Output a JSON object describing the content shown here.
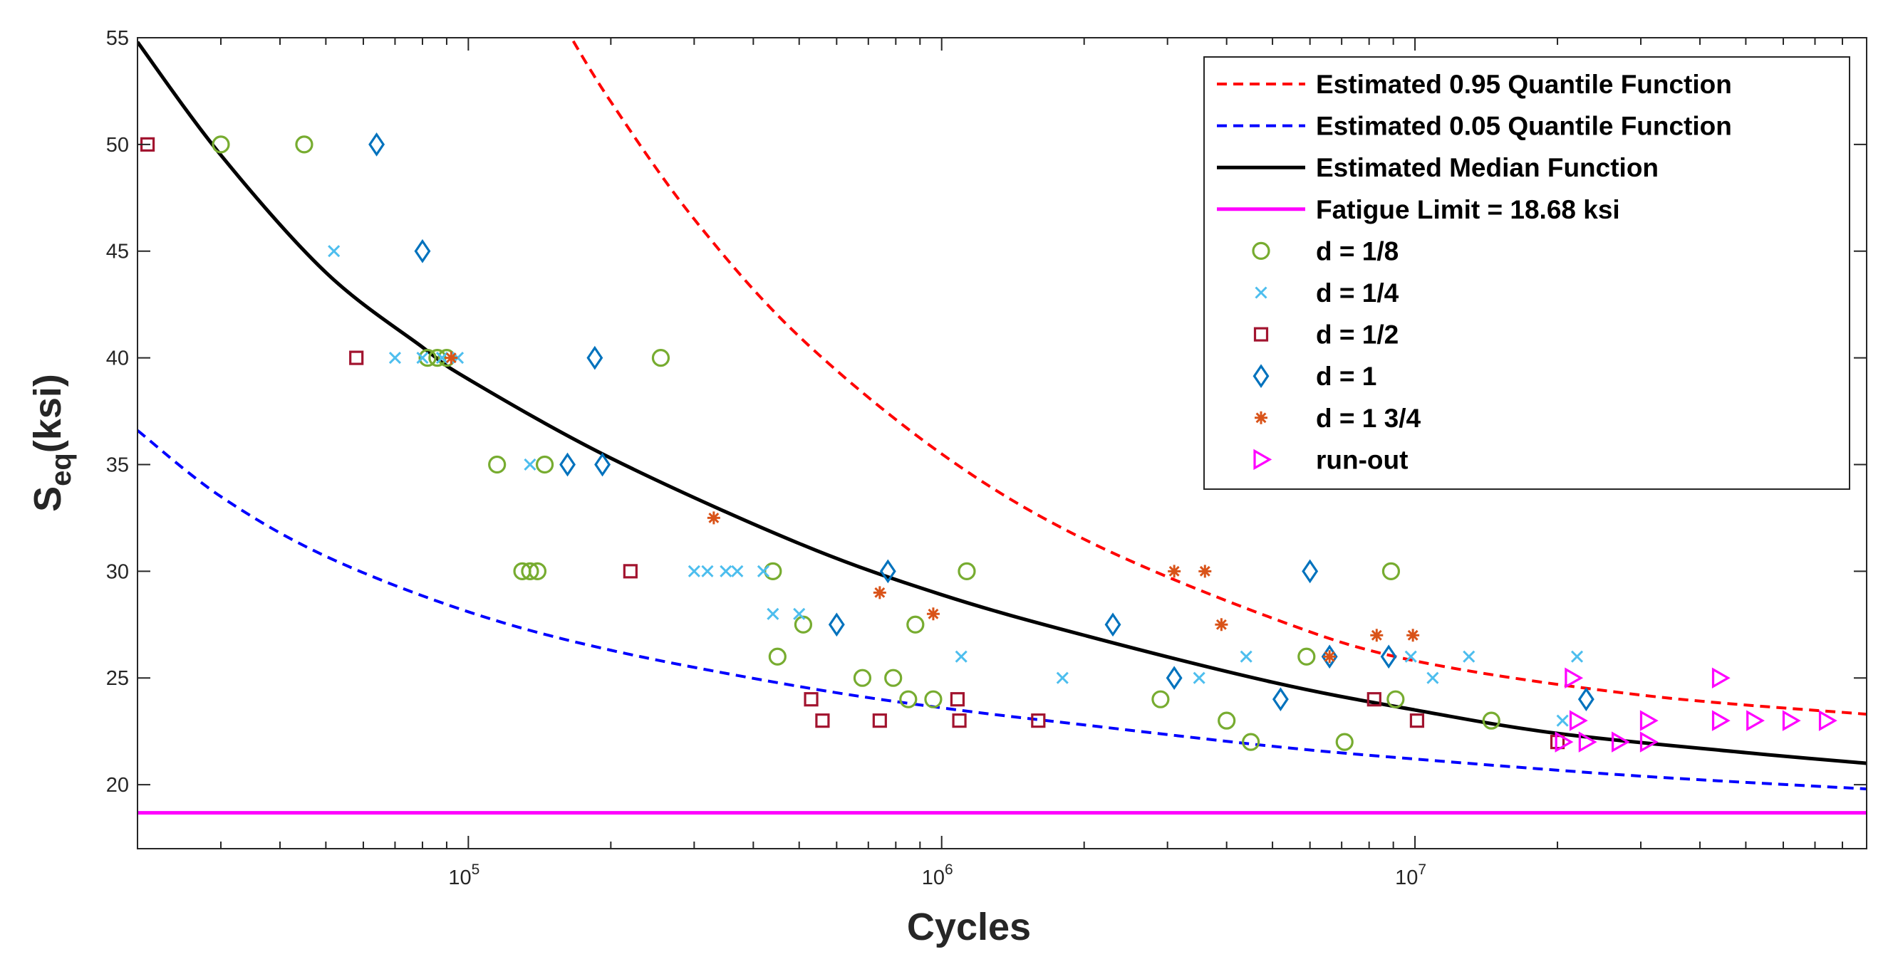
{
  "chart_data": {
    "type": "scatter",
    "x_scale": "log",
    "xlabel": "Cycles",
    "ylabel_main": "S",
    "ylabel_sub": "eq",
    "ylabel_suffix": "(ksi)",
    "xlim": [
      20000,
      90000000
    ],
    "ylim": [
      17,
      55
    ],
    "y_ticks": [
      20,
      25,
      30,
      35,
      40,
      45,
      50,
      55
    ],
    "x_ticks": [
      {
        "value": 100000,
        "base": "10",
        "exp": "5"
      },
      {
        "value": 1000000,
        "base": "10",
        "exp": "6"
      },
      {
        "value": 10000000,
        "base": "10",
        "exp": "7"
      }
    ],
    "legend_position": "top-right",
    "curves": [
      {
        "name": "Estimated 0.95 Quantile Function",
        "color": "#ff0000",
        "style": "dashed",
        "points": [
          [
            160000,
            55.5
          ],
          [
            200000,
            52
          ],
          [
            300000,
            46.5
          ],
          [
            500000,
            41
          ],
          [
            1000000,
            35.5
          ],
          [
            2000000,
            31.5
          ],
          [
            5000000,
            27.8
          ],
          [
            10000000,
            25.8
          ],
          [
            30000000,
            24.2
          ],
          [
            90000000,
            23.3
          ]
        ]
      },
      {
        "name": "Estimated 0.05 Quantile Function",
        "color": "#0000ff",
        "style": "dashed",
        "points": [
          [
            20000,
            36.6
          ],
          [
            30000,
            33.5
          ],
          [
            50000,
            30.7
          ],
          [
            100000,
            28.1
          ],
          [
            200000,
            26.3
          ],
          [
            500000,
            24.6
          ],
          [
            1000000,
            23.6
          ],
          [
            2000000,
            22.8
          ],
          [
            5000000,
            21.8
          ],
          [
            10000000,
            21.2
          ],
          [
            30000000,
            20.4
          ],
          [
            90000000,
            19.8
          ]
        ]
      },
      {
        "name": "Estimated Median Function",
        "color": "#000000",
        "style": "solid",
        "points": [
          [
            20000,
            54.8
          ],
          [
            30000,
            49.5
          ],
          [
            50000,
            44
          ],
          [
            80000,
            40.5
          ],
          [
            100000,
            39
          ],
          [
            200000,
            35.3
          ],
          [
            500000,
            31.3
          ],
          [
            1000000,
            28.9
          ],
          [
            2000000,
            27
          ],
          [
            5000000,
            24.8
          ],
          [
            10000000,
            23.5
          ],
          [
            20000000,
            22.4
          ],
          [
            50000000,
            21.5
          ],
          [
            90000000,
            21
          ]
        ]
      },
      {
        "name": "Fatigue Limit = 18.68 ksi",
        "color": "#ff00ff",
        "style": "solid",
        "points": [
          [
            20000,
            18.68
          ],
          [
            90000000,
            18.68
          ]
        ]
      }
    ],
    "series": [
      {
        "name": "d = 1/8",
        "marker": "circle",
        "color": "#77ac30",
        "points": [
          [
            30000,
            50
          ],
          [
            45000,
            50
          ],
          [
            82000,
            40
          ],
          [
            86000,
            40
          ],
          [
            90000,
            40
          ],
          [
            255000,
            40
          ],
          [
            115000,
            35
          ],
          [
            145000,
            35
          ],
          [
            130000,
            30
          ],
          [
            135000,
            30
          ],
          [
            140000,
            30
          ],
          [
            440000,
            30
          ],
          [
            1130000,
            30
          ],
          [
            8900000,
            30
          ],
          [
            510000,
            27.5
          ],
          [
            880000,
            27.5
          ],
          [
            450000,
            26
          ],
          [
            5900000,
            26
          ],
          [
            680000,
            25
          ],
          [
            790000,
            25
          ],
          [
            850000,
            24
          ],
          [
            960000,
            24
          ],
          [
            2900000,
            24
          ],
          [
            9100000,
            24
          ],
          [
            4000000,
            23
          ],
          [
            14500000,
            23
          ],
          [
            4500000,
            22
          ],
          [
            7100000,
            22
          ]
        ]
      },
      {
        "name": "d = 1/4",
        "marker": "x",
        "color": "#4dbeee",
        "points": [
          [
            52000,
            45
          ],
          [
            70000,
            40
          ],
          [
            80000,
            40
          ],
          [
            88000,
            40
          ],
          [
            95000,
            40
          ],
          [
            135000,
            35
          ],
          [
            300000,
            30
          ],
          [
            320000,
            30
          ],
          [
            350000,
            30
          ],
          [
            370000,
            30
          ],
          [
            420000,
            30
          ],
          [
            440000,
            28
          ],
          [
            500000,
            28
          ],
          [
            1100000,
            26
          ],
          [
            4400000,
            26
          ],
          [
            9800000,
            26
          ],
          [
            13000000,
            26
          ],
          [
            22000000,
            26
          ],
          [
            1800000,
            25
          ],
          [
            3500000,
            25
          ],
          [
            10900000,
            25
          ],
          [
            20500000,
            23
          ]
        ]
      },
      {
        "name": "d = 1/2",
        "marker": "square",
        "color": "#a2142f",
        "points": [
          [
            21000,
            50
          ],
          [
            58000,
            40
          ],
          [
            220000,
            30
          ],
          [
            530000,
            24
          ],
          [
            1080000,
            24
          ],
          [
            8200000,
            24
          ],
          [
            560000,
            23
          ],
          [
            740000,
            23
          ],
          [
            1090000,
            23
          ],
          [
            1600000,
            23
          ],
          [
            10100000,
            23
          ],
          [
            20000000,
            22
          ]
        ]
      },
      {
        "name": "d = 1",
        "marker": "diamond",
        "color": "#0072bd",
        "points": [
          [
            64000,
            50
          ],
          [
            80000,
            45
          ],
          [
            185000,
            40
          ],
          [
            162000,
            35
          ],
          [
            192000,
            35
          ],
          [
            770000,
            30
          ],
          [
            6000000,
            30
          ],
          [
            600000,
            27.5
          ],
          [
            2300000,
            27.5
          ],
          [
            6600000,
            26
          ],
          [
            8800000,
            26
          ],
          [
            3100000,
            25
          ],
          [
            5200000,
            24
          ],
          [
            23000000,
            24
          ]
        ]
      },
      {
        "name": "d = 1 3/4",
        "marker": "asterisk",
        "color": "#d95319",
        "points": [
          [
            92000,
            40
          ],
          [
            330000,
            32.5
          ],
          [
            3100000,
            30
          ],
          [
            3600000,
            30
          ],
          [
            740000,
            29
          ],
          [
            960000,
            28
          ],
          [
            3900000,
            27.5
          ],
          [
            8300000,
            27
          ],
          [
            9900000,
            27
          ],
          [
            6600000,
            26
          ]
        ]
      },
      {
        "name": "run-out",
        "marker": "triangle-right",
        "color": "#ff00ff",
        "points": [
          [
            21500000,
            25
          ],
          [
            44000000,
            25
          ],
          [
            22000000,
            23
          ],
          [
            31000000,
            23
          ],
          [
            44000000,
            23
          ],
          [
            52000000,
            23
          ],
          [
            62000000,
            23
          ],
          [
            74000000,
            23
          ],
          [
            20500000,
            22
          ],
          [
            23000000,
            22
          ],
          [
            27000000,
            22
          ],
          [
            31000000,
            22
          ]
        ]
      }
    ]
  }
}
